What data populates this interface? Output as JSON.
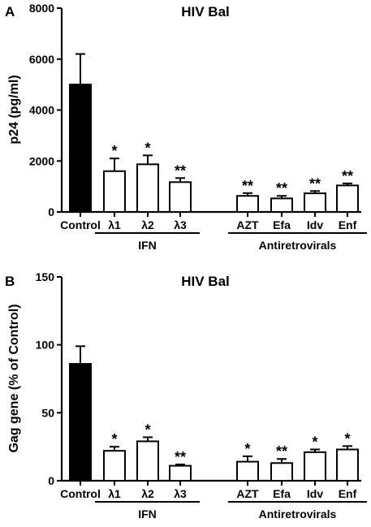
{
  "chart_data": [
    {
      "type": "bar",
      "panel_letter": "A",
      "title": "HIV Bal",
      "ylabel": "p24 (pg/ml)",
      "xlabel": "",
      "ylim": [
        0,
        8000
      ],
      "yticks": [
        0,
        2000,
        4000,
        6000,
        8000
      ],
      "grid": false,
      "categories": [
        "Control",
        "λ1",
        "λ2",
        "λ3",
        "AZT",
        "Efa",
        "Idv",
        "Enf"
      ],
      "values": [
        5000,
        1600,
        1870,
        1170,
        630,
        530,
        730,
        1040
      ],
      "errors": [
        1200,
        500,
        350,
        160,
        110,
        100,
        90,
        80
      ],
      "fills": [
        "#000000",
        "#ffffff",
        "#ffffff",
        "#ffffff",
        "#ffffff",
        "#ffffff",
        "#ffffff",
        "#ffffff"
      ],
      "significance": [
        "",
        "*",
        "*",
        "**",
        "**",
        "**",
        "**",
        "**"
      ],
      "groups": [
        {
          "label": "IFN",
          "categories": [
            "λ1",
            "λ2",
            "λ3"
          ]
        },
        {
          "label": "Antiretrovirals",
          "categories": [
            "AZT",
            "Efa",
            "Idv",
            "Enf"
          ]
        }
      ]
    },
    {
      "type": "bar",
      "panel_letter": "B",
      "title": "HIV Bal",
      "ylabel": "Gag gene (% of Control)",
      "xlabel": "",
      "ylim": [
        0,
        150
      ],
      "yticks": [
        0,
        50,
        100,
        150
      ],
      "grid": false,
      "categories": [
        "Control",
        "λ1",
        "λ2",
        "λ3",
        "AZT",
        "Efa",
        "Idv",
        "Enf"
      ],
      "values": [
        86,
        22,
        29,
        11,
        14,
        13,
        21,
        23
      ],
      "errors": [
        13,
        3,
        3,
        1,
        4,
        3,
        2,
        2.5
      ],
      "fills": [
        "#000000",
        "#ffffff",
        "#ffffff",
        "#ffffff",
        "#ffffff",
        "#ffffff",
        "#ffffff",
        "#ffffff"
      ],
      "significance": [
        "",
        "*",
        "*",
        "**",
        "*",
        "**",
        "*",
        "*"
      ],
      "groups": [
        {
          "label": "IFN",
          "categories": [
            "λ1",
            "λ2",
            "λ3"
          ]
        },
        {
          "label": "Antiretrovirals",
          "categories": [
            "AZT",
            "Efa",
            "Idv",
            "Enf"
          ]
        }
      ]
    }
  ]
}
